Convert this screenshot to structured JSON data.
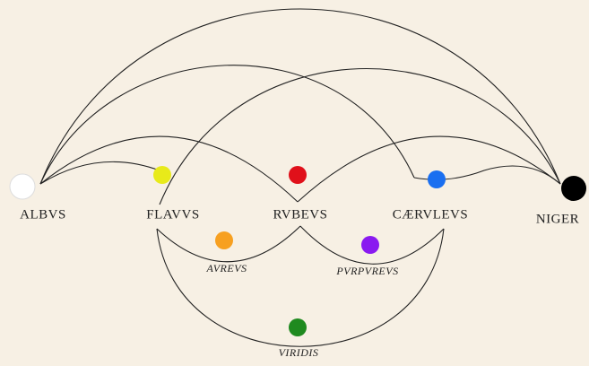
{
  "nodes": [
    {
      "label": "ALBVS",
      "color": "#ffffff"
    },
    {
      "label": "FLAVVS",
      "color": "#e8ea1a"
    },
    {
      "label": "RVBEVS",
      "color": "#e0101a"
    },
    {
      "label": "CÆRVLEVS",
      "color": "#1a6ff0"
    },
    {
      "label": "NIGER",
      "color": "#000000"
    },
    {
      "label": "AVREVS",
      "color": "#f7a020"
    },
    {
      "label": "PVRPVREVS",
      "color": "#8a1af0"
    },
    {
      "label": "VIRIDIS",
      "color": "#1f8a1f"
    }
  ]
}
